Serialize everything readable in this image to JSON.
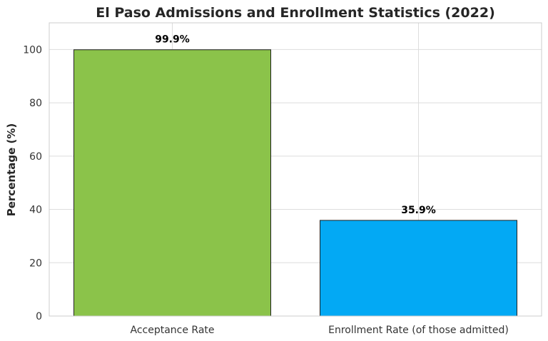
{
  "chart_data": {
    "type": "bar",
    "title": "El Paso Admissions and Enrollment Statistics (2022)",
    "xlabel": "",
    "ylabel": "Percentage (%)",
    "categories": [
      "Acceptance Rate",
      "Enrollment Rate (of those admitted)"
    ],
    "values": [
      99.9,
      35.9
    ],
    "data_labels": [
      "99.9%",
      "35.9%"
    ],
    "bar_colors": [
      "#8bc34a",
      "#03a9f4"
    ],
    "ylim": [
      0,
      110
    ],
    "yticks": [
      0,
      20,
      40,
      60,
      80,
      100
    ],
    "grid": true,
    "legend": "none"
  }
}
